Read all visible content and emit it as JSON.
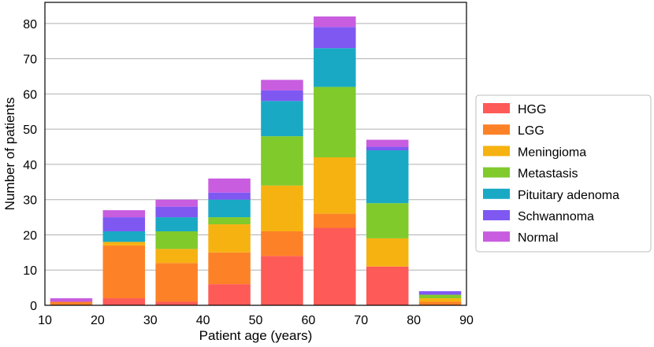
{
  "chart_data": {
    "type": "bar",
    "stacked": true,
    "xlabel": "Patient age (years)",
    "ylabel": "Number of patients",
    "xlim": [
      10,
      90
    ],
    "ylim": [
      0,
      86
    ],
    "x_ticks": [
      "10",
      "20",
      "30",
      "40",
      "50",
      "60",
      "70",
      "80",
      "90"
    ],
    "y_ticks": [
      "0",
      "10",
      "20",
      "30",
      "40",
      "50",
      "60",
      "70",
      "80"
    ],
    "bins": [
      [
        10,
        20
      ],
      [
        20,
        30
      ],
      [
        30,
        40
      ],
      [
        40,
        50
      ],
      [
        50,
        60
      ],
      [
        60,
        70
      ],
      [
        70,
        80
      ],
      [
        80,
        90
      ]
    ],
    "grid": "horizontal",
    "legend_position": "right",
    "series": [
      {
        "name": "HGG",
        "color": "#fe5a57",
        "values": [
          0,
          2,
          1,
          6,
          14,
          22,
          11,
          0
        ]
      },
      {
        "name": "LGG",
        "color": "#fd8227",
        "values": [
          1,
          15,
          11,
          9,
          7,
          4,
          0,
          1
        ]
      },
      {
        "name": "Meningioma",
        "color": "#f6b211",
        "values": [
          0,
          1,
          4,
          8,
          13,
          16,
          8,
          1
        ]
      },
      {
        "name": "Metastasis",
        "color": "#80ca2c",
        "values": [
          0,
          0,
          5,
          2,
          14,
          20,
          10,
          1
        ]
      },
      {
        "name": "Pituitary adenoma",
        "color": "#19a9c5",
        "values": [
          0,
          3,
          4,
          5,
          10,
          11,
          15,
          0
        ]
      },
      {
        "name": "Schwannoma",
        "color": "#7f58f2",
        "values": [
          0,
          4,
          3,
          2,
          3,
          6,
          1,
          1
        ]
      },
      {
        "name": "Normal",
        "color": "#c85ddf",
        "values": [
          1,
          2,
          2,
          4,
          3,
          3,
          2,
          0
        ]
      }
    ]
  }
}
